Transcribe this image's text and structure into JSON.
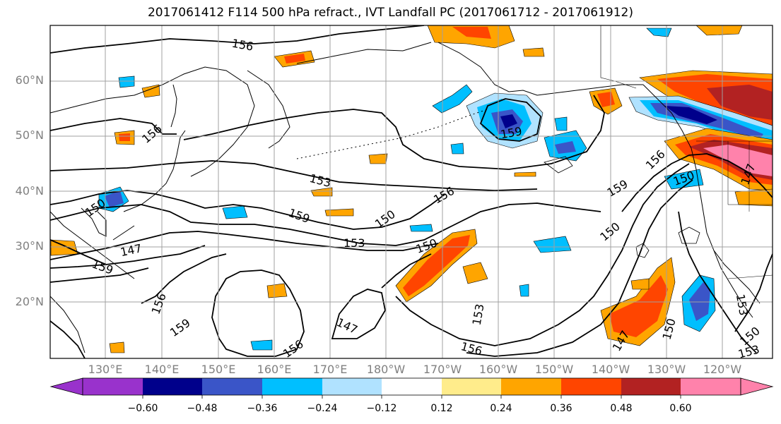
{
  "title": "2017061412 F114 500 hPa refract., IVT Landfall PC (2017061712 - 2017061912)",
  "lat_labels": [
    "60°N",
    "50°N",
    "40°N",
    "30°N",
    "20°N"
  ],
  "lon_labels": [
    "130°E",
    "140°E",
    "150°E",
    "160°E",
    "170°E",
    "180°W",
    "170°W",
    "160°W",
    "150°W",
    "140°W",
    "130°W",
    "120°W"
  ],
  "contour_labels": [
    "156",
    "156",
    "153",
    "159",
    "150",
    "150",
    "159",
    "153",
    "150",
    "147",
    "159",
    "156",
    "156",
    "159",
    "147",
    "156",
    "153",
    "156",
    "150",
    "159",
    "156",
    "150",
    "147",
    "150",
    "147",
    "153",
    "150",
    "153"
  ],
  "colorbar": {
    "ticks": [
      "−0.60",
      "−0.48",
      "−0.36",
      "−0.24",
      "−0.12",
      "0.12",
      "0.24",
      "0.36",
      "0.48",
      "0.60"
    ],
    "colors": [
      "#9932cc",
      "#00008b",
      "#3a55c8",
      "#00bfff",
      "#b0e2ff",
      "#ffffff",
      "#ffec8b",
      "#ffa500",
      "#ff4500",
      "#b22222",
      "#ff82ab"
    ]
  }
}
